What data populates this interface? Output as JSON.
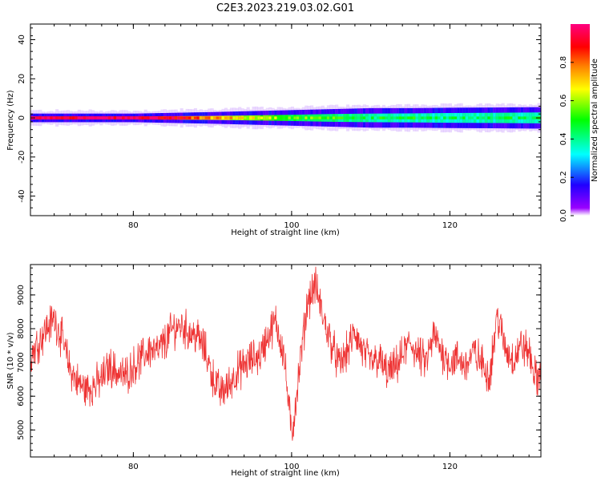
{
  "title": "C2E3.2023.219.03.02.G01",
  "chart_data": [
    {
      "type": "heatmap",
      "title": "C2E3.2023.219.03.02.G01",
      "xlabel": "Height of straight line (km)",
      "ylabel": "Frequency (Hz)",
      "xlim": [
        67,
        131.5
      ],
      "ylim": [
        -50,
        48
      ],
      "xticks": [
        80,
        100,
        120
      ],
      "yticks": [
        -40,
        -20,
        0,
        20,
        40
      ],
      "grid": false,
      "colorbar": {
        "label": "Normalized spectral amplitude",
        "range": [
          0,
          1
        ],
        "ticks": [
          0.0,
          0.2,
          0.4,
          0.6,
          0.8
        ],
        "tick_labels": [
          "0.0",
          "0.2",
          "0.4",
          "0.6",
          "0.8"
        ],
        "colors": [
          "#ffffff",
          "#8000ff",
          "#0000ff",
          "#00ffff",
          "#00ff00",
          "#ffff00",
          "#ff8000",
          "#ff0000",
          "#ff0080"
        ]
      },
      "band": {
        "description_x": [
          67,
          80,
          85,
          90,
          95,
          100,
          105,
          110,
          115,
          120,
          125,
          131.5
        ],
        "core_halfwidth_hz": [
          0.8,
          0.8,
          0.9,
          1.0,
          1.3,
          1.6,
          2.0,
          2.2,
          2.3,
          2.5,
          2.6,
          2.8
        ],
        "outer_halfwidth_hz": [
          2.2,
          2.2,
          2.6,
          3.0,
          3.5,
          4.0,
          4.5,
          5.0,
          5.0,
          5.2,
          5.3,
          5.5
        ],
        "center_color_level": [
          0.98,
          0.98,
          0.9,
          0.75,
          0.65,
          0.55,
          0.5,
          0.45,
          0.45,
          0.42,
          0.45,
          0.45
        ]
      }
    },
    {
      "type": "line",
      "xlabel": "Height of straight line (km)",
      "ylabel": "SNR (10 * v/v)",
      "xlim": [
        67,
        131.5
      ],
      "ylim": [
        4200,
        9900
      ],
      "xticks": [
        80,
        100,
        120
      ],
      "yticks": [
        5000,
        6000,
        7000,
        8000,
        9000
      ],
      "grid": false,
      "color": "#ee3333",
      "series": [
        {
          "x": [
            67,
            68,
            69,
            70,
            71,
            72,
            73,
            74,
            75,
            76,
            77,
            78,
            79,
            80,
            81,
            82,
            83,
            84,
            85,
            86,
            87,
            88,
            89,
            90,
            91,
            92,
            93,
            94,
            95,
            96,
            97,
            98,
            99,
            100,
            101,
            102,
            103,
            104,
            105,
            106,
            107,
            108,
            109,
            110,
            111,
            112,
            113,
            114,
            115,
            116,
            117,
            118,
            119,
            120,
            121,
            122,
            123,
            124,
            125,
            126,
            127,
            128,
            129,
            130,
            131,
            131.5
          ],
          "y": [
            7200,
            7600,
            8000,
            8300,
            7700,
            6800,
            6400,
            6200,
            6300,
            6500,
            6900,
            6700,
            6600,
            6900,
            7100,
            7400,
            7300,
            7600,
            8000,
            8100,
            7900,
            7800,
            7400,
            6600,
            6100,
            6300,
            6700,
            6900,
            7100,
            7200,
            7800,
            8200,
            7300,
            4800,
            6800,
            8800,
            9300,
            8300,
            7600,
            6900,
            7300,
            7900,
            7300,
            7000,
            7100,
            6700,
            6800,
            7200,
            7600,
            7200,
            7000,
            7800,
            7300,
            7000,
            7100,
            6900,
            7300,
            7000,
            6600,
            8400,
            7400,
            7100,
            7500,
            7300,
            6400,
            6900
          ]
        }
      ]
    }
  ]
}
